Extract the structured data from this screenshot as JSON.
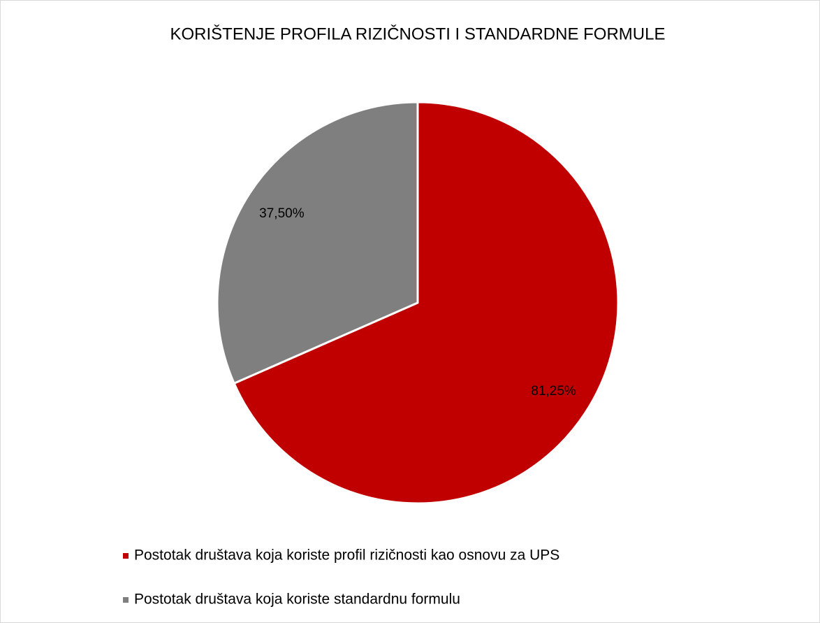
{
  "chart_data": {
    "type": "pie",
    "title": "KORIŠTENJE PROFILA RIZIČNOSTI I STANDARDNE FORMULE",
    "categories": [
      "Postotak društava koja koriste profil rizičnosti kao osnovu za UPS",
      "Postotak društava koja koriste standardnu formulu"
    ],
    "values": [
      81.25,
      37.5
    ],
    "value_labels": [
      "81,25%",
      "37,50%"
    ],
    "colors": [
      "#c00000",
      "#7f7f7f"
    ],
    "legend": "bottom"
  }
}
